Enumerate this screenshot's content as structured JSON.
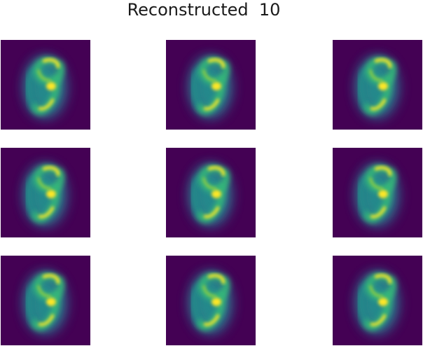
{
  "figure": {
    "title": "Reconstructed  10"
  },
  "colors": {
    "background": "#ffffff",
    "colormap": "viridis",
    "low": "#440154",
    "mid_dark": "#31688e",
    "mid": "#21918c",
    "mid_light": "#35b779",
    "high": "#fde725"
  },
  "panels": [
    {
      "row": 0,
      "col": 0,
      "content": "blurred-digit-image"
    },
    {
      "row": 0,
      "col": 1,
      "content": "blurred-digit-image"
    },
    {
      "row": 0,
      "col": 2,
      "content": "blurred-digit-image"
    },
    {
      "row": 1,
      "col": 0,
      "content": "blurred-digit-image"
    },
    {
      "row": 1,
      "col": 1,
      "content": "blurred-digit-image"
    },
    {
      "row": 1,
      "col": 2,
      "content": "blurred-digit-image"
    },
    {
      "row": 2,
      "col": 0,
      "content": "blurred-digit-image"
    },
    {
      "row": 2,
      "col": 1,
      "content": "blurred-digit-image"
    },
    {
      "row": 2,
      "col": 2,
      "content": "blurred-digit-image"
    }
  ]
}
